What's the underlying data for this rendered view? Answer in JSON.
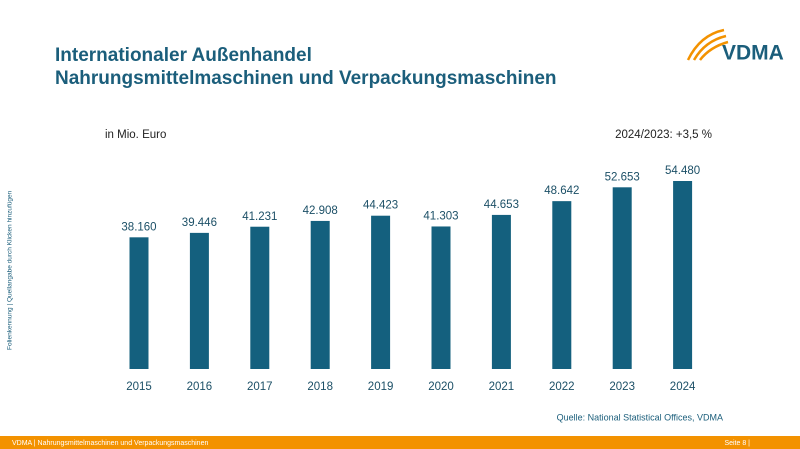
{
  "header": {
    "title_line1": "Internationaler Außenhandel",
    "title_line2": "Nahrungsmittelmaschinen und Verpackungsmaschinen",
    "logo": "VDMA"
  },
  "side_note": "Folienkennung | Quellangabe durch Klicken hinzufügen",
  "chart_data": {
    "type": "bar",
    "unit_label": "in Mio. Euro",
    "annotation": "2024/2023: +3,5 %",
    "categories": [
      "2015",
      "2016",
      "2017",
      "2018",
      "2019",
      "2020",
      "2021",
      "2022",
      "2023",
      "2024"
    ],
    "values": [
      38160,
      39446,
      41231,
      42908,
      44423,
      41303,
      44653,
      48642,
      52653,
      54480
    ],
    "value_labels": [
      "38.160",
      "39.446",
      "41.231",
      "42.908",
      "44.423",
      "41.303",
      "44.653",
      "48.642",
      "52.653",
      "54.480"
    ],
    "color": "#14607e",
    "source": "Quelle: National Statistical Offices, VDMA"
  },
  "footer": {
    "left": "VDMA | Nahrungsmittelmaschinen und Verpackungsmaschinen",
    "right": "Seite 8 |"
  }
}
